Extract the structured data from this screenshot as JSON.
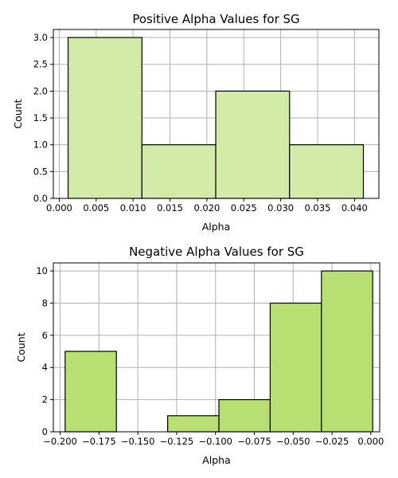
{
  "chart_data": [
    {
      "type": "bar",
      "title": "Positive Alpha Values for SG",
      "xlabel": "Alpha",
      "ylabel": "Count",
      "bar_color": "#d3eba8",
      "edge_color": "#000000",
      "grid": true,
      "xlim": [
        -0.0008,
        0.0433
      ],
      "ylim": [
        0,
        3.15
      ],
      "xticks": [
        0.0,
        0.005,
        0.01,
        0.015,
        0.02,
        0.025,
        0.03,
        0.035,
        0.04
      ],
      "xtick_labels": [
        "0.000",
        "0.005",
        "0.010",
        "0.015",
        "0.020",
        "0.025",
        "0.030",
        "0.035",
        "0.040"
      ],
      "yticks": [
        0.0,
        0.5,
        1.0,
        1.5,
        2.0,
        2.5,
        3.0
      ],
      "ytick_labels": [
        "0.0",
        "0.5",
        "1.0",
        "1.5",
        "2.0",
        "2.5",
        "3.0"
      ],
      "bins": [
        {
          "x0": 0.0012,
          "x1": 0.0112,
          "count": 3
        },
        {
          "x0": 0.0112,
          "x1": 0.0212,
          "count": 1
        },
        {
          "x0": 0.0212,
          "x1": 0.0312,
          "count": 2
        },
        {
          "x0": 0.0312,
          "x1": 0.0412,
          "count": 1
        }
      ]
    },
    {
      "type": "bar",
      "title": "Negative Alpha Values for SG",
      "xlabel": "Alpha",
      "ylabel": "Count",
      "bar_color": "#b8df72",
      "edge_color": "#000000",
      "grid": true,
      "xlim": [
        -0.2044,
        0.0057
      ],
      "ylim": [
        0,
        10.5
      ],
      "xticks": [
        -0.2,
        -0.175,
        -0.15,
        -0.125,
        -0.1,
        -0.075,
        -0.05,
        -0.025,
        0.0
      ],
      "xtick_labels": [
        "−0.200",
        "−0.175",
        "−0.150",
        "−0.125",
        "−0.100",
        "−0.075",
        "−0.050",
        "−0.025",
        "0.000"
      ],
      "yticks": [
        0,
        2,
        4,
        6,
        8,
        10
      ],
      "ytick_labels": [
        "0",
        "2",
        "4",
        "6",
        "8",
        "10"
      ],
      "bins": [
        {
          "x0": -0.1968,
          "x1": -0.1638,
          "count": 5
        },
        {
          "x0": -0.1638,
          "x1": -0.1308,
          "count": 0
        },
        {
          "x0": -0.1308,
          "x1": -0.0978,
          "count": 1
        },
        {
          "x0": -0.0978,
          "x1": -0.0648,
          "count": 2
        },
        {
          "x0": -0.0648,
          "x1": -0.0318,
          "count": 8
        },
        {
          "x0": -0.0318,
          "x1": 0.0012,
          "count": 10
        }
      ]
    }
  ]
}
